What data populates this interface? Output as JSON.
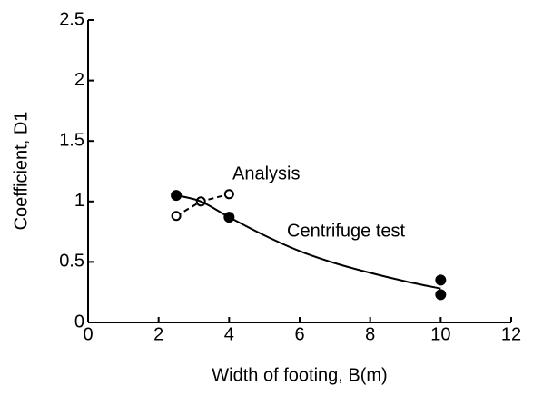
{
  "chart_data": {
    "type": "scatter",
    "x_label": "Width of footing, B(m)",
    "y_label": "Coefficient, D1",
    "xlim": [
      0,
      12
    ],
    "xticks": [
      0,
      2,
      4,
      6,
      8,
      10,
      12
    ],
    "ylim": [
      0,
      2.5
    ],
    "yticks": [
      0,
      0.5,
      1,
      1.5,
      2,
      2.5
    ],
    "grid": false,
    "series": [
      {
        "name": "Analysis",
        "color": "#000000",
        "marker": "open",
        "line": "dashed",
        "x": [
          2.5,
          3.2,
          4
        ],
        "values": [
          0.88,
          1.0,
          1.06
        ]
      },
      {
        "name": "Centrifuge test",
        "color": "#000000",
        "marker": "filled",
        "line": "none",
        "x": [
          2.5,
          4,
          10,
          10
        ],
        "values": [
          1.05,
          0.87,
          0.35,
          0.23
        ],
        "fit": {
          "x": [
            2.5,
            3.2,
            4,
            5,
            6,
            7,
            8,
            9,
            10
          ],
          "values": [
            1.05,
            1.0,
            0.87,
            0.72,
            0.59,
            0.49,
            0.41,
            0.34,
            0.28
          ]
        }
      }
    ]
  }
}
